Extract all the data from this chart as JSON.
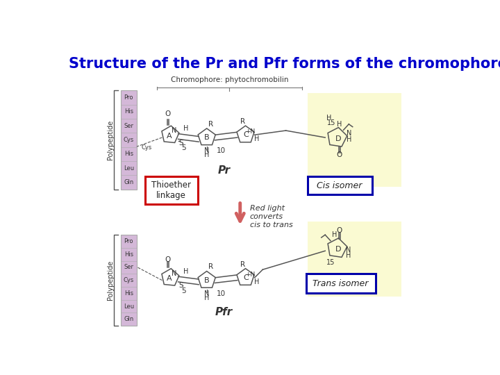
{
  "title": "Structure of the Pr and Pfr forms of the chromophore",
  "title_color": "#0000CC",
  "title_fontsize": 15,
  "bg_color": "#FFFFFF",
  "fig_width": 7.2,
  "fig_height": 5.4,
  "dpi": 100,
  "polypeptide_label": "Polypeptide",
  "polypeptide_color": "#D4B8D8",
  "polypeptide_residues": [
    "Pro",
    "His",
    "Ser",
    "Cys",
    "His",
    "Leu",
    "Gln"
  ],
  "chromophore_label": "Chromophore: phytochromobilin",
  "pr_label": "Pr",
  "pfr_label": "Pfr",
  "thioether_label": "Thioether\nlinkage",
  "thioether_box_color": "#CC0000",
  "cis_label": "Cis isomer",
  "trans_label": "Trans isomer",
  "isomer_box_color": "#0000AA",
  "yellow_bg": "#FAFAD2",
  "red_arrow_color": "#D06060",
  "arrow_text": "Red light\nconverts\ncis to trans",
  "line_color": "#555555",
  "label_color": "#333333"
}
